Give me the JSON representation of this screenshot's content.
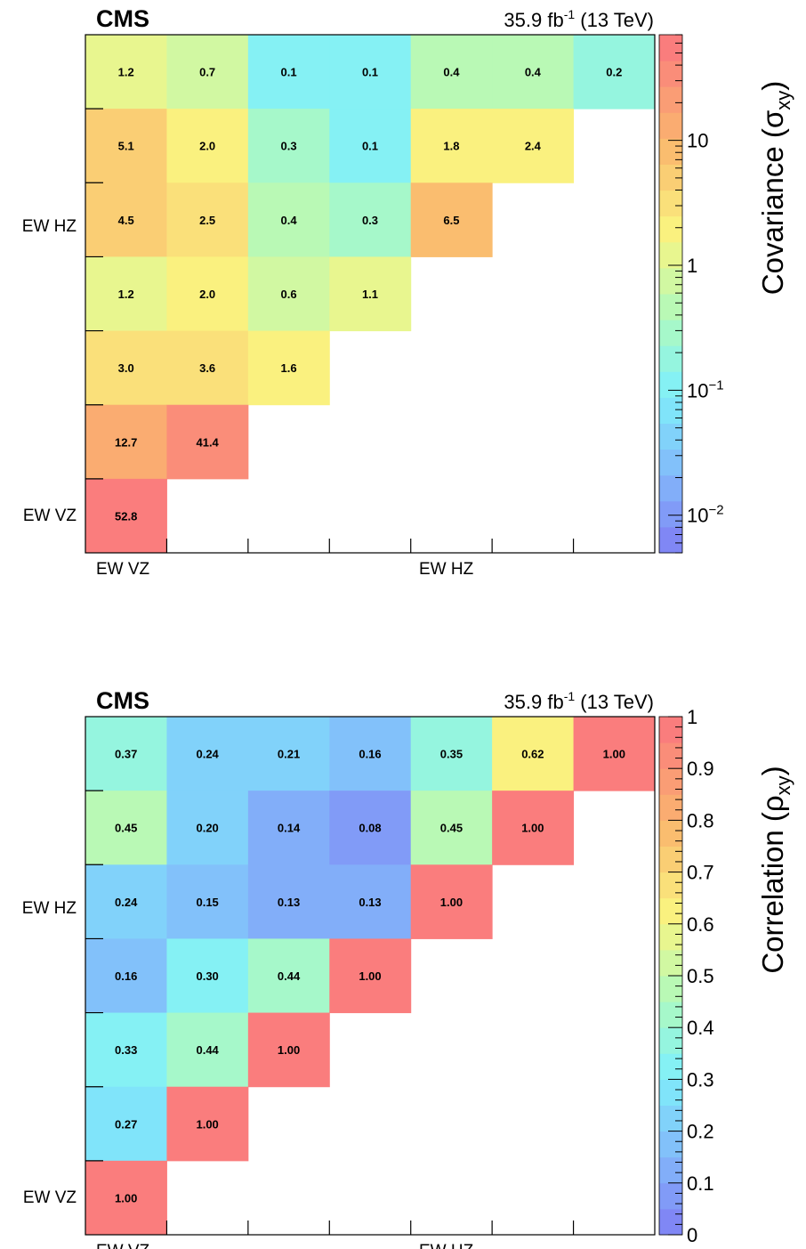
{
  "chart_data": [
    {
      "type": "heatmap",
      "experiment": "CMS",
      "lumi_text": "35.9 fb",
      "lumi_sup": "-1",
      "energy_text": " (13 TeV)",
      "x_labels": [
        "EW VZ",
        "EW HZ"
      ],
      "y_labels": [
        "EW HZ",
        "EW VZ"
      ],
      "z_title": "Covariance (σ",
      "z_title_sub": "xy",
      "z_title_close": ")",
      "z_scale": "log",
      "z_range": [
        0.005,
        70
      ],
      "z_ticks": [
        {
          "value": 10,
          "base": "10",
          "exp": ""
        },
        {
          "value": 1,
          "base": "1",
          "exp": ""
        },
        {
          "value": 0.1,
          "base": "10",
          "exp": "−1"
        },
        {
          "value": 0.01,
          "base": "10",
          "exp": "−2"
        }
      ],
      "bins": 7,
      "rows_top_to_bottom": [
        [
          "1.2",
          "0.7",
          "0.1",
          "0.1",
          "0.4",
          "0.4",
          "0.2"
        ],
        [
          "5.1",
          "2.0",
          "0.3",
          "0.1",
          "1.8",
          "2.4"
        ],
        [
          "4.5",
          "2.5",
          "0.4",
          "0.3",
          "6.5"
        ],
        [
          "1.2",
          "2.0",
          "0.6",
          "1.1"
        ],
        [
          "3.0",
          "3.6",
          "1.6"
        ],
        [
          "12.7",
          "41.4"
        ],
        [
          "52.8"
        ]
      ]
    },
    {
      "type": "heatmap",
      "experiment": "CMS",
      "lumi_text": "35.9 fb",
      "lumi_sup": "-1",
      "energy_text": " (13 TeV)",
      "x_labels": [
        "EW VZ",
        "EW HZ"
      ],
      "y_labels": [
        "EW HZ",
        "EW VZ"
      ],
      "z_title": "Correlation (ρ",
      "z_title_sub": "xy",
      "z_title_close": ")",
      "z_scale": "linear",
      "z_range": [
        0,
        1
      ],
      "z_ticks": [
        {
          "value": 1,
          "base": "1",
          "exp": ""
        },
        {
          "value": 0.9,
          "base": "0.9",
          "exp": ""
        },
        {
          "value": 0.8,
          "base": "0.8",
          "exp": ""
        },
        {
          "value": 0.7,
          "base": "0.7",
          "exp": ""
        },
        {
          "value": 0.6,
          "base": "0.6",
          "exp": ""
        },
        {
          "value": 0.5,
          "base": "0.5",
          "exp": ""
        },
        {
          "value": 0.4,
          "base": "0.4",
          "exp": ""
        },
        {
          "value": 0.3,
          "base": "0.3",
          "exp": ""
        },
        {
          "value": 0.2,
          "base": "0.2",
          "exp": ""
        },
        {
          "value": 0.1,
          "base": "0.1",
          "exp": ""
        },
        {
          "value": 0,
          "base": "0",
          "exp": ""
        }
      ],
      "bins": 7,
      "rows_top_to_bottom": [
        [
          "0.37",
          "0.24",
          "0.21",
          "0.16",
          "0.35",
          "0.62",
          "1.00"
        ],
        [
          "0.45",
          "0.20",
          "0.14",
          "0.08",
          "0.45",
          "1.00"
        ],
        [
          "0.24",
          "0.15",
          "0.13",
          "0.13",
          "1.00"
        ],
        [
          "0.16",
          "0.30",
          "0.44",
          "1.00"
        ],
        [
          "0.33",
          "0.44",
          "1.00"
        ],
        [
          "0.27",
          "1.00"
        ],
        [
          "1.00"
        ]
      ]
    }
  ]
}
